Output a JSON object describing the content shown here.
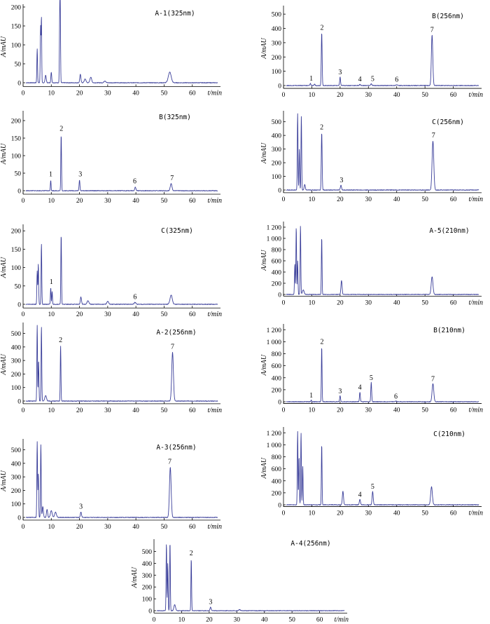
{
  "chart_data": [
    {
      "id": "A1-325",
      "type": "line",
      "title": "A-1(325nm)",
      "xlabel": "t/min",
      "ylabel": "A/mAU",
      "xlim": [
        0,
        70
      ],
      "ylim": [
        -10,
        200
      ],
      "xticks": [
        0,
        10,
        20,
        30,
        40,
        50,
        60
      ],
      "yticks": [
        0,
        50,
        100,
        150,
        200
      ],
      "ytick_labels": [
        "0",
        "50",
        "100",
        "150",
        "200"
      ],
      "peaks": [
        [
          5.0,
          90,
          0.12
        ],
        [
          6.2,
          150,
          0.12
        ],
        [
          6.5,
          170,
          0.1
        ],
        [
          8.0,
          20,
          0.2
        ],
        [
          10.0,
          28,
          0.15
        ],
        [
          13.0,
          185,
          0.12
        ],
        [
          13.2,
          160,
          0.1
        ],
        [
          20.3,
          22,
          0.2
        ],
        [
          22.0,
          10,
          0.3
        ],
        [
          24.0,
          15,
          0.3
        ],
        [
          29.0,
          5,
          0.3
        ],
        [
          52.0,
          28,
          0.5
        ]
      ],
      "peak_labels": []
    },
    {
      "id": "B-256",
      "type": "line",
      "title": "B(256nm)",
      "xlabel": "t/min",
      "ylabel": "A/mAU",
      "xlim": [
        0,
        70
      ],
      "ylim": [
        -20,
        540
      ],
      "xticks": [
        0,
        10,
        20,
        30,
        40,
        50,
        60
      ],
      "yticks": [
        0,
        100,
        200,
        300,
        400,
        500
      ],
      "ytick_labels": [
        "0",
        "100",
        "200",
        "300",
        "400",
        "500"
      ],
      "peaks": [
        [
          9.5,
          15,
          0.15
        ],
        [
          11.0,
          10,
          0.15
        ],
        [
          13.5,
          370,
          0.15
        ],
        [
          20.0,
          60,
          0.15
        ],
        [
          27.0,
          8,
          0.2
        ],
        [
          31.0,
          12,
          0.2
        ],
        [
          40.0,
          6,
          0.3
        ],
        [
          52.5,
          355,
          0.25
        ]
      ],
      "peak_labels": [
        {
          "x": 9.8,
          "y": 20,
          "text": "1"
        },
        {
          "x": 13.6,
          "y": 375,
          "text": "2"
        },
        {
          "x": 20.0,
          "y": 65,
          "text": "3"
        },
        {
          "x": 27.0,
          "y": 14,
          "text": "4"
        },
        {
          "x": 31.5,
          "y": 18,
          "text": "5"
        },
        {
          "x": 40.0,
          "y": 12,
          "text": "6"
        },
        {
          "x": 52.5,
          "y": 360,
          "text": "7"
        }
      ]
    },
    {
      "id": "B-325",
      "type": "line",
      "title": "B(325nm)",
      "xlabel": "t/min",
      "ylabel": "A/mAU",
      "xlim": [
        0,
        70
      ],
      "ylim": [
        -10,
        220
      ],
      "xticks": [
        0,
        10,
        20,
        30,
        40,
        50,
        60
      ],
      "yticks": [
        0,
        50,
        100,
        150,
        200
      ],
      "ytick_labels": [
        "0",
        "50",
        "100",
        "150",
        "200"
      ],
      "peaks": [
        [
          9.8,
          30,
          0.12
        ],
        [
          13.5,
          160,
          0.12
        ],
        [
          20.0,
          30,
          0.15
        ],
        [
          39.8,
          10,
          0.2
        ],
        [
          52.5,
          20,
          0.3
        ]
      ],
      "peak_labels": [
        {
          "x": 9.8,
          "y": 35,
          "text": "1"
        },
        {
          "x": 13.6,
          "y": 165,
          "text": "2"
        },
        {
          "x": 20.3,
          "y": 35,
          "text": "3"
        },
        {
          "x": 39.6,
          "y": 15,
          "text": "6"
        },
        {
          "x": 52.8,
          "y": 24,
          "text": "7"
        }
      ]
    },
    {
      "id": "C-256",
      "type": "line",
      "title": "C(256nm)",
      "xlabel": "t/min",
      "ylabel": "A/mAU",
      "xlim": [
        0,
        70
      ],
      "ylim": [
        -20,
        560
      ],
      "xticks": [
        0,
        10,
        20,
        30,
        40,
        50,
        60
      ],
      "yticks": [
        0,
        100,
        200,
        300,
        400,
        500
      ],
      "ytick_labels": [
        "0",
        "100",
        "200",
        "300",
        "400",
        "500"
      ],
      "peaks": [
        [
          5.0,
          560,
          0.12
        ],
        [
          5.6,
          300,
          0.12
        ],
        [
          6.3,
          540,
          0.12
        ],
        [
          7.5,
          40,
          0.2
        ],
        [
          13.5,
          420,
          0.15
        ],
        [
          20.3,
          35,
          0.2
        ],
        [
          52.8,
          360,
          0.3
        ]
      ],
      "peak_labels": [
        {
          "x": 13.5,
          "y": 430,
          "text": "2"
        },
        {
          "x": 20.5,
          "y": 40,
          "text": "3"
        },
        {
          "x": 53.0,
          "y": 370,
          "text": "7"
        }
      ]
    },
    {
      "id": "C-325",
      "type": "line",
      "title": "C(325nm)",
      "xlabel": "t/min",
      "ylabel": "A/mAU",
      "xlim": [
        0,
        70
      ],
      "ylim": [
        -10,
        210
      ],
      "xticks": [
        0,
        10,
        20,
        30,
        40,
        50,
        60
      ],
      "yticks": [
        0,
        50,
        100,
        150,
        200
      ],
      "ytick_labels": [
        "0",
        "50",
        "100",
        "150",
        "200"
      ],
      "peaks": [
        [
          5.0,
          90,
          0.12
        ],
        [
          5.4,
          110,
          0.12
        ],
        [
          6.5,
          165,
          0.12
        ],
        [
          9.8,
          45,
          0.12
        ],
        [
          10.3,
          35,
          0.12
        ],
        [
          13.5,
          190,
          0.12
        ],
        [
          20.5,
          20,
          0.2
        ],
        [
          23.0,
          10,
          0.3
        ],
        [
          30.0,
          8,
          0.3
        ],
        [
          39.7,
          5,
          0.3
        ],
        [
          52.5,
          25,
          0.4
        ]
      ],
      "peak_labels": [
        {
          "x": 10.0,
          "y": 50,
          "text": "1"
        },
        {
          "x": 39.7,
          "y": 9,
          "text": "6"
        }
      ]
    },
    {
      "id": "A5-210",
      "type": "line",
      "title": "A-5(210nm)",
      "xlabel": "t/min",
      "ylabel": "A/mAU",
      "xlim": [
        0,
        70
      ],
      "ylim": [
        -30,
        1250
      ],
      "xticks": [
        0,
        10,
        20,
        30,
        40,
        50,
        60
      ],
      "yticks": [
        0,
        200,
        400,
        600,
        800,
        1000,
        1200
      ],
      "ytick_labels": [
        "0",
        "200",
        "400",
        "600",
        "800",
        "1 000",
        "1 200"
      ],
      "peaks": [
        [
          4.0,
          550,
          0.12
        ],
        [
          4.5,
          1200,
          0.12
        ],
        [
          5.0,
          600,
          0.12
        ],
        [
          6.0,
          1220,
          0.12
        ],
        [
          7.0,
          80,
          0.3
        ],
        [
          13.5,
          1020,
          0.12
        ],
        [
          20.5,
          250,
          0.2
        ],
        [
          52.5,
          320,
          0.3
        ]
      ],
      "peak_labels": []
    },
    {
      "id": "A2-256",
      "type": "line",
      "title": "A-2(256nm)",
      "xlabel": "t/min",
      "ylabel": "A/mAU",
      "xlim": [
        0,
        70
      ],
      "ylim": [
        -20,
        560
      ],
      "xticks": [
        0,
        10,
        20,
        30,
        40,
        50,
        60
      ],
      "yticks": [
        0,
        100,
        200,
        300,
        400,
        500
      ],
      "ytick_labels": [
        "0",
        "100",
        "200",
        "300",
        "400",
        "500"
      ],
      "peaks": [
        [
          5.0,
          560,
          0.12
        ],
        [
          5.5,
          300,
          0.12
        ],
        [
          6.5,
          550,
          0.12
        ],
        [
          8.0,
          40,
          0.3
        ],
        [
          13.3,
          410,
          0.12
        ],
        [
          53.0,
          360,
          0.3
        ]
      ],
      "peak_labels": [
        {
          "x": 13.3,
          "y": 420,
          "text": "2"
        },
        {
          "x": 53.0,
          "y": 370,
          "text": "7"
        }
      ]
    },
    {
      "id": "B-210",
      "type": "line",
      "title": "B(210nm)",
      "xlabel": "t/min",
      "ylabel": "A/mAU",
      "xlim": [
        0,
        70
      ],
      "ylim": [
        -30,
        1250
      ],
      "xticks": [
        0,
        10,
        20,
        30,
        40,
        50,
        60
      ],
      "yticks": [
        0,
        200,
        400,
        600,
        800,
        1000,
        1200
      ],
      "ytick_labels": [
        "0",
        "200",
        "400",
        "600",
        "800",
        "1 000",
        "1 200"
      ],
      "peaks": [
        [
          9.8,
          30,
          0.12
        ],
        [
          13.5,
          920,
          0.12
        ],
        [
          20.0,
          100,
          0.15
        ],
        [
          27.0,
          160,
          0.15
        ],
        [
          31.0,
          320,
          0.15
        ],
        [
          39.7,
          10,
          0.3
        ],
        [
          52.8,
          300,
          0.3
        ]
      ],
      "peak_labels": [
        {
          "x": 9.8,
          "y": 35,
          "text": "1"
        },
        {
          "x": 13.6,
          "y": 930,
          "text": "2"
        },
        {
          "x": 20.0,
          "y": 105,
          "text": "3"
        },
        {
          "x": 27.0,
          "y": 170,
          "text": "4"
        },
        {
          "x": 31.0,
          "y": 330,
          "text": "5"
        },
        {
          "x": 39.7,
          "y": 18,
          "text": "6"
        },
        {
          "x": 52.8,
          "y": 310,
          "text": "7"
        }
      ]
    },
    {
      "id": "A3-256",
      "type": "line",
      "title": "A-3(256nm)",
      "xlabel": "t/min",
      "ylabel": "A/mAU",
      "xlim": [
        0,
        70
      ],
      "ylim": [
        -20,
        560
      ],
      "xticks": [
        0,
        10,
        20,
        30,
        40,
        50,
        60
      ],
      "yticks": [
        0,
        100,
        200,
        300,
        400,
        500
      ],
      "ytick_labels": [
        "0",
        "100",
        "200",
        "300",
        "400",
        "500"
      ],
      "peaks": [
        [
          5.0,
          560,
          0.12
        ],
        [
          5.4,
          320,
          0.12
        ],
        [
          6.3,
          540,
          0.12
        ],
        [
          7.0,
          80,
          0.2
        ],
        [
          8.5,
          60,
          0.2
        ],
        [
          10.0,
          50,
          0.3
        ],
        [
          11.5,
          40,
          0.3
        ],
        [
          20.5,
          40,
          0.2
        ],
        [
          52.2,
          370,
          0.3
        ]
      ],
      "peak_labels": [
        {
          "x": 20.5,
          "y": 50,
          "text": "3"
        },
        {
          "x": 52.0,
          "y": 380,
          "text": "7"
        }
      ]
    },
    {
      "id": "C-210",
      "type": "line",
      "title": "C(210nm)",
      "xlabel": "t/min",
      "ylabel": "A/mAU",
      "xlim": [
        0,
        70
      ],
      "ylim": [
        -30,
        1250
      ],
      "xticks": [
        0,
        10,
        20,
        30,
        40,
        50,
        60
      ],
      "yticks": [
        0,
        200,
        400,
        600,
        800,
        1000,
        1200
      ],
      "ytick_labels": [
        "0",
        "200",
        "400",
        "600",
        "800",
        "1 000",
        "1 200"
      ],
      "peaks": [
        [
          5.0,
          1220,
          0.12
        ],
        [
          5.5,
          800,
          0.12
        ],
        [
          6.2,
          1200,
          0.12
        ],
        [
          6.8,
          650,
          0.12
        ],
        [
          13.5,
          1010,
          0.12
        ],
        [
          21.0,
          230,
          0.2
        ],
        [
          27.0,
          90,
          0.2
        ],
        [
          31.5,
          220,
          0.2
        ],
        [
          52.3,
          300,
          0.3
        ]
      ],
      "peak_labels": [
        {
          "x": 27.0,
          "y": 100,
          "text": "4"
        },
        {
          "x": 31.5,
          "y": 235,
          "text": "5"
        }
      ]
    },
    {
      "id": "A4-256",
      "type": "line",
      "title": "A-4(256nm)",
      "xlabel": "t/min",
      "ylabel": "A/mAU",
      "xlim": [
        0,
        70
      ],
      "ylim": [
        -20,
        580
      ],
      "xticks": [
        0,
        10,
        20,
        30,
        40,
        50,
        60
      ],
      "yticks": [
        0,
        100,
        200,
        300,
        400,
        500
      ],
      "ytick_labels": [
        "0",
        "100",
        "200",
        "300",
        "400",
        "500"
      ],
      "peaks": [
        [
          4.5,
          570,
          0.12
        ],
        [
          5.0,
          400,
          0.12
        ],
        [
          5.8,
          580,
          0.12
        ],
        [
          7.5,
          50,
          0.3
        ],
        [
          13.5,
          440,
          0.12
        ],
        [
          20.5,
          30,
          0.2
        ],
        [
          31.0,
          8,
          0.3
        ]
      ],
      "peak_labels": [
        {
          "x": 13.5,
          "y": 450,
          "text": "2"
        },
        {
          "x": 20.5,
          "y": 38,
          "text": "3"
        }
      ]
    }
  ]
}
